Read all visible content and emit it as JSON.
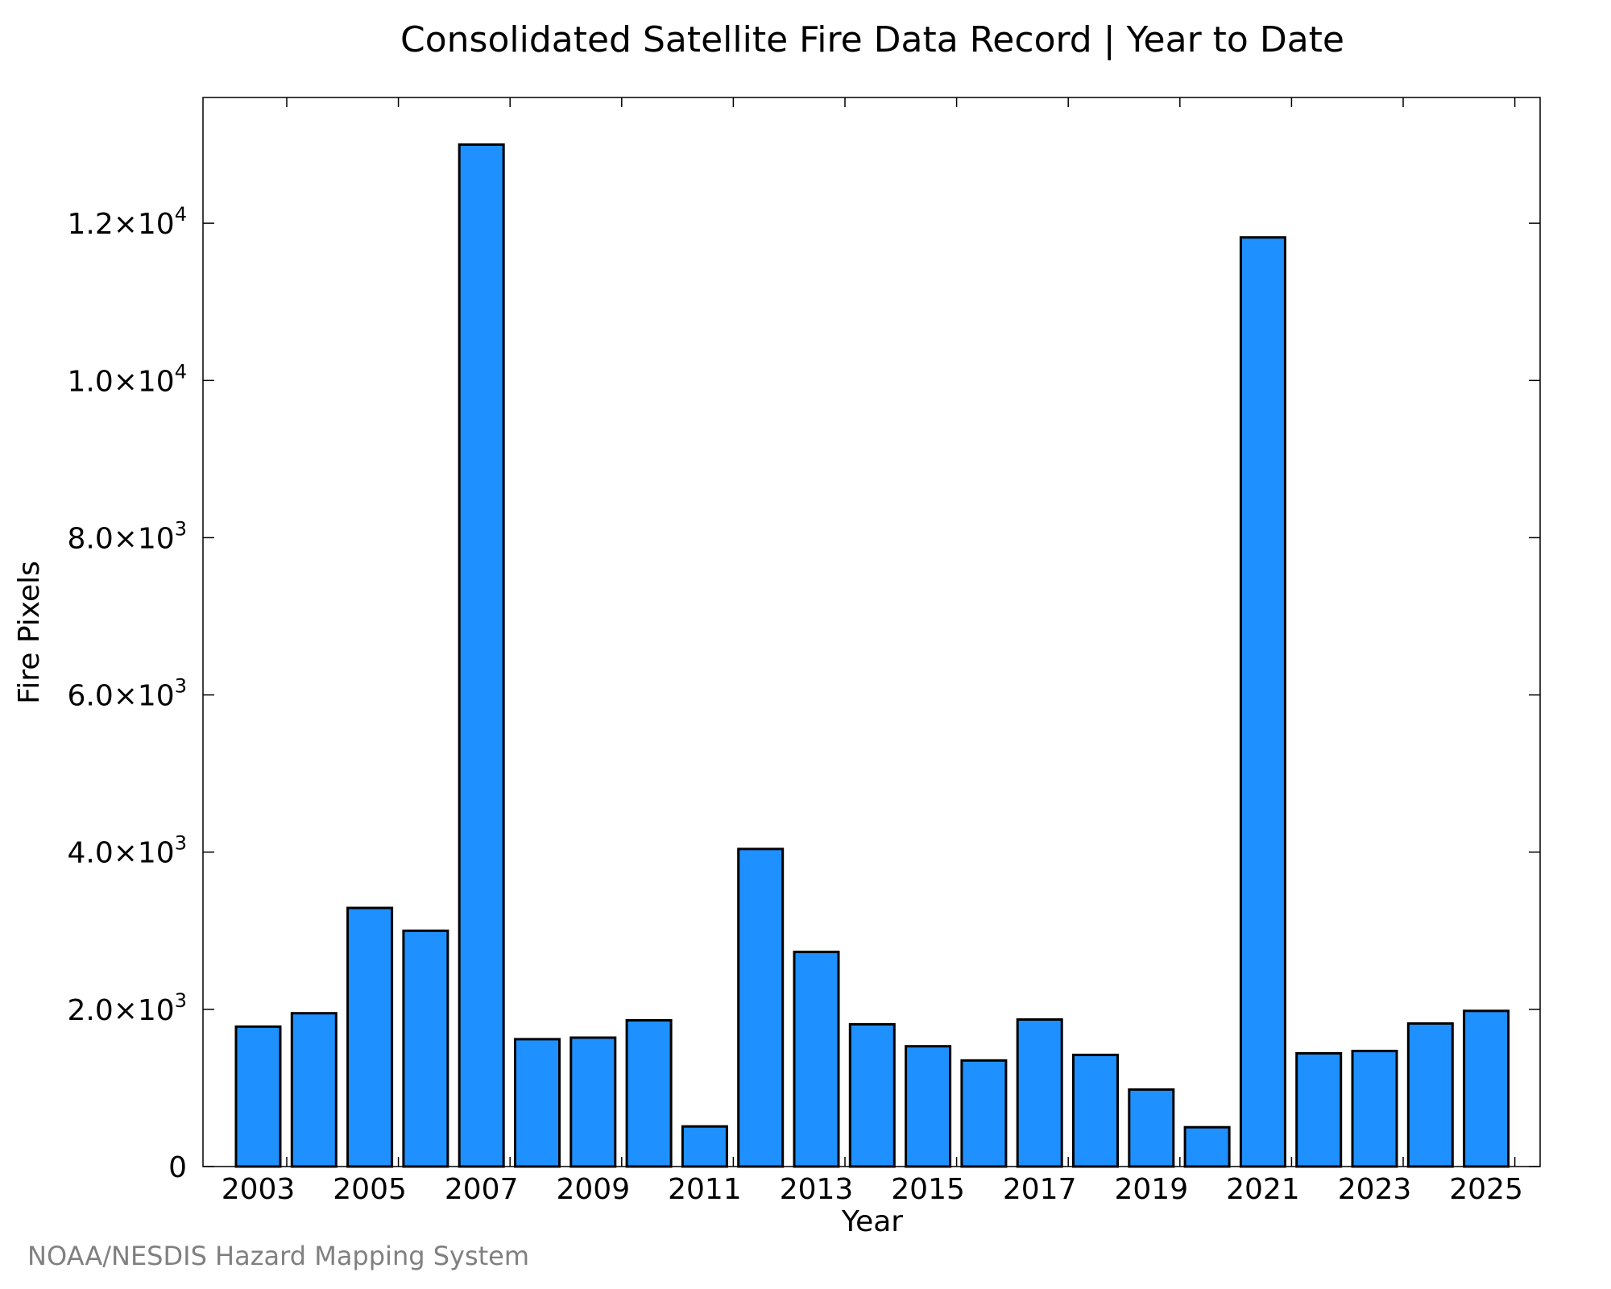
{
  "chart_data": {
    "type": "bar",
    "title": "Consolidated Satellite Fire Data Record | Year to Date",
    "xlabel": "Year",
    "ylabel": "Fire Pixels",
    "credit": "NOAA/NESDIS Hazard Mapping System",
    "categories": [
      "2003",
      "2004",
      "2005",
      "2006",
      "2007",
      "2008",
      "2009",
      "2010",
      "2011",
      "2012",
      "2013",
      "2014",
      "2015",
      "2016",
      "2017",
      "2018",
      "2019",
      "2020",
      "2021",
      "2022",
      "2023",
      "2024",
      "2025"
    ],
    "x_tick_labels": [
      "2003",
      "2005",
      "2007",
      "2009",
      "2011",
      "2013",
      "2015",
      "2017",
      "2019",
      "2021",
      "2023",
      "2025"
    ],
    "values": [
      1780,
      1950,
      3290,
      3000,
      13000,
      1620,
      1640,
      1860,
      510,
      4040,
      2730,
      1810,
      1530,
      1350,
      1870,
      1420,
      980,
      500,
      11820,
      1440,
      1470,
      1820,
      1980
    ],
    "ylim": [
      0,
      13600
    ],
    "y_ticks": [
      {
        "value": 0,
        "mantissa": "0",
        "exponent": ""
      },
      {
        "value": 2000,
        "mantissa": "2.0×10",
        "exponent": "3"
      },
      {
        "value": 4000,
        "mantissa": "4.0×10",
        "exponent": "3"
      },
      {
        "value": 6000,
        "mantissa": "6.0×10",
        "exponent": "3"
      },
      {
        "value": 8000,
        "mantissa": "8.0×10",
        "exponent": "3"
      },
      {
        "value": 10000,
        "mantissa": "1.0×10",
        "exponent": "4"
      },
      {
        "value": 12000,
        "mantissa": "1.2×10",
        "exponent": "4"
      }
    ],
    "bar_color": "#1e90ff",
    "grid": false,
    "legend": "none"
  }
}
